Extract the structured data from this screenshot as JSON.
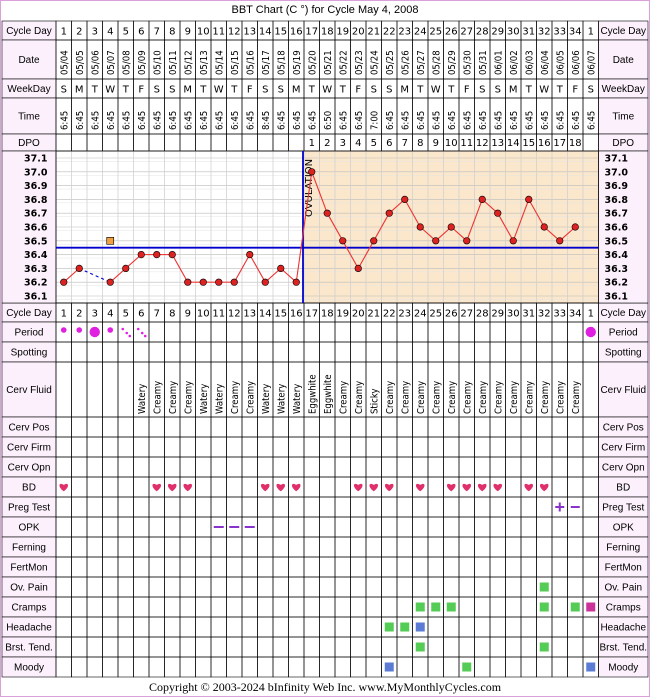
{
  "title": "BBT Chart (C °) for Cycle May 4, 2008",
  "copyright": "Copyright © 2003-2024 bInfinity Web Inc.    www.MyMonthlyCycles.com",
  "colors": {
    "background_frame": "#ffffff",
    "label_cell_bg": "#fbf0fb",
    "coverline": "#0000cc",
    "ovulation_line": "#0000cc",
    "luteal_bg": "#fbe7cc",
    "temp_line": "#ee3333",
    "temp_dot": "#dd2222",
    "period": "#e020e0",
    "heart": "#e0306a",
    "green_marker": "#55cc55",
    "blue_marker": "#5b7bd5",
    "magenta_marker": "#cc3399",
    "opk_dash": "#8833cc"
  },
  "row_labels": {
    "cycle_day": "Cycle Day",
    "date": "Date",
    "weekday": "WeekDay",
    "time": "Time",
    "dpo": "DPO",
    "period": "Period",
    "spotting": "Spotting",
    "cerv_fluid": "Cerv Fluid",
    "cerv_pos": "Cerv Pos",
    "cerv_firm": "Cerv Firm",
    "cerv_opn": "Cerv Opn",
    "bd": "BD",
    "preg_test": "Preg Test",
    "opk": "OPK",
    "ferning": "Ferning",
    "fertmon": "FertMon",
    "ov_pain": "Ov. Pain",
    "cramps": "Cramps",
    "headache": "Headache",
    "brst_tend": "Brst. Tend.",
    "moody": "Moody"
  },
  "ovulation_label": "OVULATION",
  "chart_data": {
    "type": "line",
    "title": "BBT Chart (C °) for Cycle May 4, 2008",
    "cycle_days": [
      "1",
      "2",
      "3",
      "4",
      "5",
      "6",
      "7",
      "8",
      "9",
      "10",
      "11",
      "12",
      "13",
      "14",
      "15",
      "16",
      "17",
      "18",
      "19",
      "20",
      "21",
      "22",
      "23",
      "24",
      "25",
      "26",
      "27",
      "28",
      "29",
      "30",
      "31",
      "32",
      "33",
      "34",
      "1"
    ],
    "dates": [
      "05/04",
      "05/05",
      "05/06",
      "05/07",
      "05/08",
      "05/09",
      "05/10",
      "05/11",
      "05/12",
      "05/13",
      "05/14",
      "05/15",
      "05/16",
      "05/17",
      "05/18",
      "05/19",
      "05/20",
      "05/21",
      "05/22",
      "05/23",
      "05/24",
      "05/25",
      "05/26",
      "05/27",
      "05/28",
      "05/29",
      "05/30",
      "05/31",
      "06/01",
      "06/02",
      "06/03",
      "06/04",
      "06/05",
      "06/06",
      "06/07"
    ],
    "weekdays": [
      "S",
      "M",
      "T",
      "W",
      "T",
      "F",
      "S",
      "S",
      "M",
      "T",
      "W",
      "T",
      "F",
      "S",
      "S",
      "M",
      "T",
      "W",
      "T",
      "F",
      "S",
      "S",
      "M",
      "T",
      "W",
      "T",
      "F",
      "S",
      "S",
      "M",
      "T",
      "W",
      "T",
      "F",
      "S"
    ],
    "times": [
      "6:45",
      "6:45",
      "6:45",
      "6:45",
      "6:45",
      "6:45",
      "6:45",
      "6:45",
      "6:45",
      "6:45",
      "6:45",
      "6:45",
      "6:45",
      "8:45",
      "6:45",
      "6:45",
      "6:45",
      "6:50",
      "6:45",
      "6:45",
      "7:00",
      "6:45",
      "6:45",
      "6:45",
      "6:45",
      "6:45",
      "6:45",
      "6:45",
      "6:45",
      "6:45",
      "6:45",
      "6:45",
      "6:45",
      "6:45",
      "6:45"
    ],
    "dpo": [
      "",
      "",
      "",
      "",
      "",
      "",
      "",
      "",
      "",
      "",
      "",
      "",
      "",
      "",
      "",
      "",
      "1",
      "2",
      "3",
      "4",
      "5",
      "6",
      "7",
      "8",
      "9",
      "10",
      "11",
      "12",
      "13",
      "14",
      "15",
      "16",
      "17",
      "18",
      ""
    ],
    "y_ticks": [
      "37.1",
      "37.0",
      "36.9",
      "36.8",
      "36.7",
      "36.6",
      "36.5",
      "36.4",
      "36.3",
      "36.2",
      "36.1"
    ],
    "ylim": [
      36.1,
      37.1
    ],
    "temperatures": [
      36.2,
      36.3,
      null,
      36.2,
      36.3,
      36.4,
      36.4,
      36.4,
      36.2,
      36.2,
      36.2,
      36.2,
      36.4,
      36.2,
      36.3,
      36.2,
      37.0,
      36.7,
      36.5,
      36.3,
      36.5,
      36.7,
      36.8,
      36.6,
      36.5,
      36.6,
      36.5,
      36.8,
      36.7,
      36.5,
      36.8,
      36.6,
      36.5,
      36.6,
      null
    ],
    "discarded": [
      {
        "day_index": 3,
        "value": 36.5
      }
    ],
    "coverline": 36.45,
    "ovulation_day_index": 16,
    "cerv_fluid": [
      "",
      "",
      "",
      "",
      "",
      "Watery",
      "Creamy",
      "Creamy",
      "Creamy",
      "Watery",
      "Watery",
      "Creamy",
      "Creamy",
      "Watery",
      "Watery",
      "Watery",
      "Eggwhite",
      "Eggwhite",
      "Creamy",
      "Creamy",
      "Sticky",
      "Creamy",
      "Creamy",
      "Creamy",
      "Creamy",
      "Creamy",
      "Creamy",
      "Creamy",
      "Creamy",
      "Creamy",
      "Creamy",
      "Creamy",
      "Creamy",
      "Creamy",
      ""
    ],
    "period": [
      "dot",
      "dot",
      "big",
      "dot",
      "spot",
      "spot",
      "",
      "",
      "",
      "",
      "",
      "",
      "",
      "",
      "",
      "",
      "",
      "",
      "",
      "",
      "",
      "",
      "",
      "",
      "",
      "",
      "",
      "",
      "",
      "",
      "",
      "",
      "",
      "",
      "big"
    ],
    "bd": [
      1,
      0,
      0,
      0,
      0,
      0,
      1,
      1,
      1,
      0,
      0,
      0,
      0,
      1,
      1,
      1,
      0,
      0,
      0,
      1,
      1,
      1,
      0,
      1,
      0,
      1,
      1,
      1,
      1,
      0,
      1,
      1,
      0,
      0,
      0
    ],
    "preg_test": {
      "32": "+",
      "33": "-"
    },
    "opk": {
      "10": "-",
      "11": "-",
      "12": "-"
    },
    "ov_pain": {
      "31": "green"
    },
    "cramps": {
      "23": "green",
      "24": "green",
      "25": "green",
      "31": "green",
      "33": "green",
      "34": "magenta"
    },
    "headache": {
      "21": "green",
      "22": "green",
      "23": "blue"
    },
    "brst_tend": {
      "23": "green",
      "31": "green"
    },
    "moody": {
      "21": "blue",
      "26": "green",
      "34": "blue"
    }
  }
}
